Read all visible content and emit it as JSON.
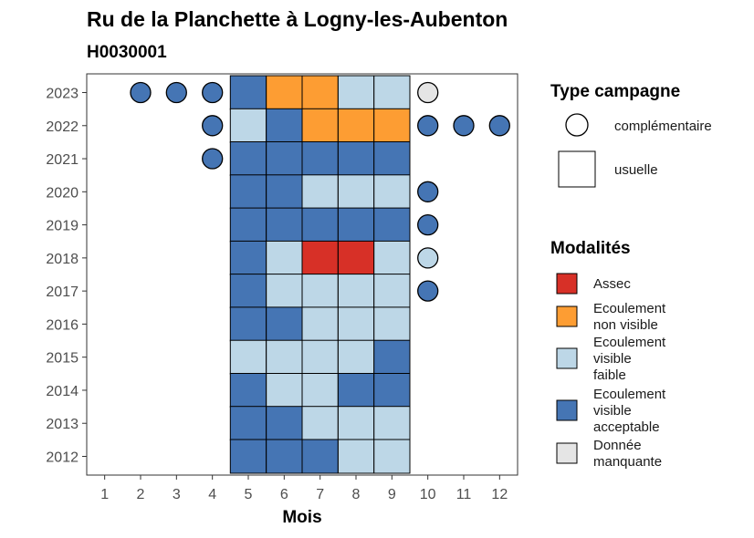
{
  "title": "Ru de la Planchette à Logny-les-Aubenton",
  "subtitle": "H0030001",
  "chart_data": {
    "type": "heatmap",
    "xlabel": "Mois",
    "ylabel": "",
    "x_ticks": [
      "1",
      "2",
      "3",
      "4",
      "5",
      "6",
      "7",
      "8",
      "9",
      "10",
      "11",
      "12"
    ],
    "y_ticks": [
      "2012",
      "2013",
      "2014",
      "2015",
      "2016",
      "2017",
      "2018",
      "2019",
      "2020",
      "2021",
      "2022",
      "2023"
    ],
    "xlim": [
      0.5,
      12.5
    ],
    "ylim": [
      "2012",
      "2023"
    ],
    "grid": false,
    "legend_position": "right",
    "colors": {
      "Assec": "#d73027",
      "Ecoulement non visible": "#fd9d33",
      "Ecoulement visible faible": "#bdd7e7",
      "Ecoulement visible acceptable": "#4575b4",
      "Donnée manquante": "#e5e5e5"
    },
    "points": [
      {
        "year": "2023",
        "month": 2,
        "type": "complémentaire",
        "modalite": "Ecoulement visible acceptable"
      },
      {
        "year": "2023",
        "month": 3,
        "type": "complémentaire",
        "modalite": "Ecoulement visible acceptable"
      },
      {
        "year": "2023",
        "month": 4,
        "type": "complémentaire",
        "modalite": "Ecoulement visible acceptable"
      },
      {
        "year": "2023",
        "month": 5,
        "type": "usuelle",
        "modalite": "Ecoulement visible acceptable"
      },
      {
        "year": "2023",
        "month": 6,
        "type": "usuelle",
        "modalite": "Ecoulement non visible"
      },
      {
        "year": "2023",
        "month": 7,
        "type": "usuelle",
        "modalite": "Ecoulement non visible"
      },
      {
        "year": "2023",
        "month": 8,
        "type": "usuelle",
        "modalite": "Ecoulement visible faible"
      },
      {
        "year": "2023",
        "month": 9,
        "type": "usuelle",
        "modalite": "Ecoulement visible faible"
      },
      {
        "year": "2023",
        "month": 10,
        "type": "complémentaire",
        "modalite": "Donnée manquante"
      },
      {
        "year": "2022",
        "month": 4,
        "type": "complémentaire",
        "modalite": "Ecoulement visible acceptable"
      },
      {
        "year": "2022",
        "month": 5,
        "type": "usuelle",
        "modalite": "Ecoulement visible faible"
      },
      {
        "year": "2022",
        "month": 6,
        "type": "usuelle",
        "modalite": "Ecoulement visible acceptable"
      },
      {
        "year": "2022",
        "month": 7,
        "type": "usuelle",
        "modalite": "Ecoulement non visible"
      },
      {
        "year": "2022",
        "month": 8,
        "type": "usuelle",
        "modalite": "Ecoulement non visible"
      },
      {
        "year": "2022",
        "month": 9,
        "type": "usuelle",
        "modalite": "Ecoulement non visible"
      },
      {
        "year": "2022",
        "month": 10,
        "type": "complémentaire",
        "modalite": "Ecoulement visible acceptable"
      },
      {
        "year": "2022",
        "month": 11,
        "type": "complémentaire",
        "modalite": "Ecoulement visible acceptable"
      },
      {
        "year": "2022",
        "month": 12,
        "type": "complémentaire",
        "modalite": "Ecoulement visible acceptable"
      },
      {
        "year": "2021",
        "month": 4,
        "type": "complémentaire",
        "modalite": "Ecoulement visible acceptable"
      },
      {
        "year": "2021",
        "month": 5,
        "type": "usuelle",
        "modalite": "Ecoulement visible acceptable"
      },
      {
        "year": "2021",
        "month": 6,
        "type": "usuelle",
        "modalite": "Ecoulement visible acceptable"
      },
      {
        "year": "2021",
        "month": 7,
        "type": "usuelle",
        "modalite": "Ecoulement visible acceptable"
      },
      {
        "year": "2021",
        "month": 8,
        "type": "usuelle",
        "modalite": "Ecoulement visible acceptable"
      },
      {
        "year": "2021",
        "month": 9,
        "type": "usuelle",
        "modalite": "Ecoulement visible acceptable"
      },
      {
        "year": "2020",
        "month": 5,
        "type": "usuelle",
        "modalite": "Ecoulement visible acceptable"
      },
      {
        "year": "2020",
        "month": 6,
        "type": "usuelle",
        "modalite": "Ecoulement visible acceptable"
      },
      {
        "year": "2020",
        "month": 7,
        "type": "usuelle",
        "modalite": "Ecoulement visible faible"
      },
      {
        "year": "2020",
        "month": 8,
        "type": "usuelle",
        "modalite": "Ecoulement visible faible"
      },
      {
        "year": "2020",
        "month": 9,
        "type": "usuelle",
        "modalite": "Ecoulement visible faible"
      },
      {
        "year": "2020",
        "month": 10,
        "type": "complémentaire",
        "modalite": "Ecoulement visible acceptable"
      },
      {
        "year": "2019",
        "month": 5,
        "type": "usuelle",
        "modalite": "Ecoulement visible acceptable"
      },
      {
        "year": "2019",
        "month": 6,
        "type": "usuelle",
        "modalite": "Ecoulement visible acceptable"
      },
      {
        "year": "2019",
        "month": 7,
        "type": "usuelle",
        "modalite": "Ecoulement visible acceptable"
      },
      {
        "year": "2019",
        "month": 8,
        "type": "usuelle",
        "modalite": "Ecoulement visible acceptable"
      },
      {
        "year": "2019",
        "month": 9,
        "type": "usuelle",
        "modalite": "Ecoulement visible acceptable"
      },
      {
        "year": "2019",
        "month": 10,
        "type": "complémentaire",
        "modalite": "Ecoulement visible acceptable"
      },
      {
        "year": "2018",
        "month": 5,
        "type": "usuelle",
        "modalite": "Ecoulement visible acceptable"
      },
      {
        "year": "2018",
        "month": 6,
        "type": "usuelle",
        "modalite": "Ecoulement visible faible"
      },
      {
        "year": "2018",
        "month": 7,
        "type": "usuelle",
        "modalite": "Assec"
      },
      {
        "year": "2018",
        "month": 8,
        "type": "usuelle",
        "modalite": "Assec"
      },
      {
        "year": "2018",
        "month": 9,
        "type": "usuelle",
        "modalite": "Ecoulement visible faible"
      },
      {
        "year": "2018",
        "month": 10,
        "type": "complémentaire",
        "modalite": "Ecoulement visible faible"
      },
      {
        "year": "2017",
        "month": 5,
        "type": "usuelle",
        "modalite": "Ecoulement visible acceptable"
      },
      {
        "year": "2017",
        "month": 6,
        "type": "usuelle",
        "modalite": "Ecoulement visible faible"
      },
      {
        "year": "2017",
        "month": 7,
        "type": "usuelle",
        "modalite": "Ecoulement visible faible"
      },
      {
        "year": "2017",
        "month": 8,
        "type": "usuelle",
        "modalite": "Ecoulement visible faible"
      },
      {
        "year": "2017",
        "month": 9,
        "type": "usuelle",
        "modalite": "Ecoulement visible faible"
      },
      {
        "year": "2017",
        "month": 10,
        "type": "complémentaire",
        "modalite": "Ecoulement visible acceptable"
      },
      {
        "year": "2016",
        "month": 5,
        "type": "usuelle",
        "modalite": "Ecoulement visible acceptable"
      },
      {
        "year": "2016",
        "month": 6,
        "type": "usuelle",
        "modalite": "Ecoulement visible acceptable"
      },
      {
        "year": "2016",
        "month": 7,
        "type": "usuelle",
        "modalite": "Ecoulement visible faible"
      },
      {
        "year": "2016",
        "month": 8,
        "type": "usuelle",
        "modalite": "Ecoulement visible faible"
      },
      {
        "year": "2016",
        "month": 9,
        "type": "usuelle",
        "modalite": "Ecoulement visible faible"
      },
      {
        "year": "2015",
        "month": 5,
        "type": "usuelle",
        "modalite": "Ecoulement visible faible"
      },
      {
        "year": "2015",
        "month": 6,
        "type": "usuelle",
        "modalite": "Ecoulement visible faible"
      },
      {
        "year": "2015",
        "month": 7,
        "type": "usuelle",
        "modalite": "Ecoulement visible faible"
      },
      {
        "year": "2015",
        "month": 8,
        "type": "usuelle",
        "modalite": "Ecoulement visible faible"
      },
      {
        "year": "2015",
        "month": 9,
        "type": "usuelle",
        "modalite": "Ecoulement visible acceptable"
      },
      {
        "year": "2014",
        "month": 5,
        "type": "usuelle",
        "modalite": "Ecoulement visible acceptable"
      },
      {
        "year": "2014",
        "month": 6,
        "type": "usuelle",
        "modalite": "Ecoulement visible faible"
      },
      {
        "year": "2014",
        "month": 7,
        "type": "usuelle",
        "modalite": "Ecoulement visible faible"
      },
      {
        "year": "2014",
        "month": 8,
        "type": "usuelle",
        "modalite": "Ecoulement visible acceptable"
      },
      {
        "year": "2014",
        "month": 9,
        "type": "usuelle",
        "modalite": "Ecoulement visible acceptable"
      },
      {
        "year": "2013",
        "month": 5,
        "type": "usuelle",
        "modalite": "Ecoulement visible acceptable"
      },
      {
        "year": "2013",
        "month": 6,
        "type": "usuelle",
        "modalite": "Ecoulement visible acceptable"
      },
      {
        "year": "2013",
        "month": 7,
        "type": "usuelle",
        "modalite": "Ecoulement visible faible"
      },
      {
        "year": "2013",
        "month": 8,
        "type": "usuelle",
        "modalite": "Ecoulement visible faible"
      },
      {
        "year": "2013",
        "month": 9,
        "type": "usuelle",
        "modalite": "Ecoulement visible faible"
      },
      {
        "year": "2012",
        "month": 5,
        "type": "usuelle",
        "modalite": "Ecoulement visible acceptable"
      },
      {
        "year": "2012",
        "month": 6,
        "type": "usuelle",
        "modalite": "Ecoulement visible acceptable"
      },
      {
        "year": "2012",
        "month": 7,
        "type": "usuelle",
        "modalite": "Ecoulement visible acceptable"
      },
      {
        "year": "2012",
        "month": 8,
        "type": "usuelle",
        "modalite": "Ecoulement visible faible"
      },
      {
        "year": "2012",
        "month": 9,
        "type": "usuelle",
        "modalite": "Ecoulement visible faible"
      }
    ]
  },
  "legend_type": {
    "title": "Type campagne",
    "items": [
      {
        "key": "complémentaire",
        "label": "complémentaire",
        "shape": "circle"
      },
      {
        "key": "usuelle",
        "label": "usuelle",
        "shape": "square"
      }
    ]
  },
  "legend_modalites": {
    "title": "Modalités",
    "items": [
      {
        "key": "Assec",
        "lines": [
          "Assec"
        ],
        "color": "#d73027"
      },
      {
        "key": "Ecoulement non visible",
        "lines": [
          "Ecoulement",
          "non visible"
        ],
        "color": "#fd9d33"
      },
      {
        "key": "Ecoulement visible faible",
        "lines": [
          "Ecoulement",
          "visible",
          "faible"
        ],
        "color": "#bdd7e7"
      },
      {
        "key": "Ecoulement visible acceptable",
        "lines": [
          "Ecoulement",
          "visible",
          "acceptable"
        ],
        "color": "#4575b4"
      },
      {
        "key": "Donnée manquante",
        "lines": [
          "Donnée",
          "manquante"
        ],
        "color": "#e5e5e5"
      }
    ]
  }
}
